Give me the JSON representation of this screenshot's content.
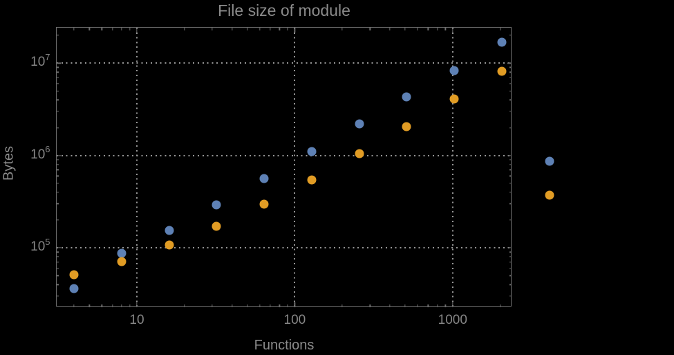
{
  "chart_data": {
    "type": "scatter",
    "title": "File size of module",
    "xlabel": "Functions",
    "ylabel": "Bytes",
    "x_scale": "log",
    "y_scale": "log",
    "grid": "dotted",
    "legend": "none",
    "x": [
      4,
      8,
      16,
      32,
      64,
      128,
      256,
      512,
      1024,
      2048,
      4096
    ],
    "series": [
      {
        "name": "series-1-blue",
        "color": "#5E81B5",
        "values": [
          36000,
          88000,
          155000,
          290000,
          560000,
          1110000,
          2200000,
          4300000,
          8300000,
          17000000,
          860000
        ]
      },
      {
        "name": "series-2-orange",
        "color": "#E19C24",
        "values": [
          51000,
          71000,
          108000,
          172000,
          295000,
          540000,
          1050000,
          2060000,
          4100000,
          8200000,
          370000
        ]
      }
    ],
    "x_ticks": [
      {
        "v": 10,
        "label": "10"
      },
      {
        "v": 100,
        "label": "100"
      },
      {
        "v": 1000,
        "label": "1000"
      }
    ],
    "y_ticks": [
      {
        "v": 100000,
        "base": "10",
        "exp": "5"
      },
      {
        "v": 1000000,
        "base": "10",
        "exp": "6"
      },
      {
        "v": 10000000,
        "base": "10",
        "exp": "7"
      }
    ],
    "x_range_log": [
      0.49,
      3.373
    ],
    "y_range_log": [
      4.36,
      7.385
    ]
  },
  "colors": {
    "background": "#000000",
    "text": "#8b8b8b",
    "frame": "#6e6e6e",
    "grid": "#969696"
  }
}
